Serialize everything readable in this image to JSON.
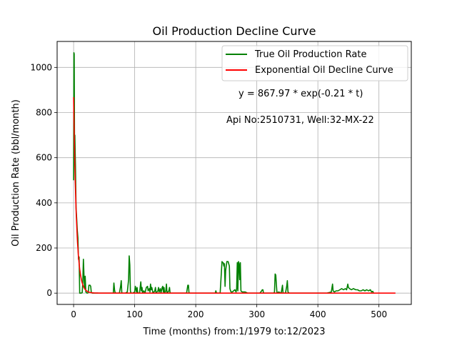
{
  "chart_data": {
    "type": "line",
    "title": "Oil Production Decline Curve",
    "xlabel": "Time (months) from:1/1979 to:12/2023",
    "ylabel": "Oil Production Rate (bbl/month)",
    "xlim": [
      -27,
      553
    ],
    "ylim": [
      -50,
      1115
    ],
    "xticks": [
      0,
      100,
      200,
      300,
      400,
      500
    ],
    "yticks": [
      0,
      200,
      400,
      600,
      800,
      1000
    ],
    "grid": true,
    "legend_position": "top-right",
    "annotations": [
      "y = 867.97 * exp(-0.21 * t)",
      "Api No:2510731, Well:32-MX-22"
    ],
    "series": [
      {
        "name": "True Oil Production Rate",
        "color": "#008000",
        "points": [
          [
            0,
            500
          ],
          [
            0.5,
            1065
          ],
          [
            1,
            1060
          ],
          [
            1.5,
            620
          ],
          [
            2,
            700
          ],
          [
            3,
            560
          ],
          [
            4,
            380
          ],
          [
            5,
            330
          ],
          [
            6,
            280
          ],
          [
            7,
            245
          ],
          [
            8,
            150
          ],
          [
            9,
            160
          ],
          [
            10,
            0
          ],
          [
            12,
            0
          ],
          [
            14,
            2
          ],
          [
            15,
            45
          ],
          [
            16,
            150
          ],
          [
            17,
            80
          ],
          [
            18,
            20
          ],
          [
            19,
            75
          ],
          [
            20,
            5
          ],
          [
            22,
            0
          ],
          [
            24,
            2
          ],
          [
            25,
            35
          ],
          [
            27,
            35
          ],
          [
            28,
            30
          ],
          [
            29,
            2
          ],
          [
            31,
            0
          ],
          [
            40,
            0
          ],
          [
            50,
            0
          ],
          [
            60,
            0
          ],
          [
            65,
            0
          ],
          [
            66,
            45
          ],
          [
            67,
            15
          ],
          [
            68,
            2
          ],
          [
            70,
            0
          ],
          [
            75,
            0
          ],
          [
            77,
            30
          ],
          [
            78,
            55
          ],
          [
            79,
            0
          ],
          [
            82,
            0
          ],
          [
            85,
            0
          ],
          [
            88,
            5
          ],
          [
            90,
            60
          ],
          [
            91,
            165
          ],
          [
            92,
            125
          ],
          [
            93,
            10
          ],
          [
            94,
            0
          ],
          [
            97,
            0
          ],
          [
            100,
            5
          ],
          [
            101,
            30
          ],
          [
            102,
            20
          ],
          [
            103,
            5
          ],
          [
            104,
            25
          ],
          [
            105,
            0
          ],
          [
            108,
            0
          ],
          [
            110,
            50
          ],
          [
            111,
            10
          ],
          [
            112,
            25
          ],
          [
            113,
            0
          ],
          [
            115,
            10
          ],
          [
            117,
            0
          ],
          [
            119,
            25
          ],
          [
            121,
            30
          ],
          [
            122,
            10
          ],
          [
            124,
            20
          ],
          [
            125,
            5
          ],
          [
            126,
            40
          ],
          [
            127,
            15
          ],
          [
            128,
            25
          ],
          [
            130,
            0
          ],
          [
            133,
            10
          ],
          [
            134,
            25
          ],
          [
            135,
            0
          ],
          [
            138,
            10
          ],
          [
            139,
            25
          ],
          [
            140,
            5
          ],
          [
            142,
            20
          ],
          [
            143,
            0
          ],
          [
            145,
            25
          ],
          [
            146,
            30
          ],
          [
            147,
            5
          ],
          [
            148,
            25
          ],
          [
            149,
            0
          ],
          [
            151,
            10
          ],
          [
            152,
            40
          ],
          [
            153,
            0
          ],
          [
            156,
            10
          ],
          [
            157,
            25
          ],
          [
            158,
            0
          ],
          [
            161,
            0
          ],
          [
            165,
            0
          ],
          [
            175,
            0
          ],
          [
            185,
            0
          ],
          [
            187,
            35
          ],
          [
            188,
            35
          ],
          [
            189,
            0
          ],
          [
            195,
            0
          ],
          [
            210,
            0
          ],
          [
            225,
            0
          ],
          [
            232,
            0
          ],
          [
            233,
            10
          ],
          [
            234,
            0
          ],
          [
            240,
            0
          ],
          [
            243,
            140
          ],
          [
            244,
            135
          ],
          [
            245,
            135
          ],
          [
            246,
            120
          ],
          [
            247,
            130
          ],
          [
            248,
            30
          ],
          [
            249,
            100
          ],
          [
            251,
            140
          ],
          [
            252,
            140
          ],
          [
            253,
            140
          ],
          [
            254,
            130
          ],
          [
            255,
            120
          ],
          [
            256,
            20
          ],
          [
            257,
            10
          ],
          [
            258,
            5
          ],
          [
            260,
            5
          ],
          [
            262,
            10
          ],
          [
            264,
            15
          ],
          [
            266,
            5
          ],
          [
            267,
            20
          ],
          [
            268,
            135
          ],
          [
            269,
            10
          ],
          [
            270,
            140
          ],
          [
            271,
            130
          ],
          [
            272,
            60
          ],
          [
            273,
            135
          ],
          [
            274,
            10
          ],
          [
            276,
            5
          ],
          [
            278,
            5
          ],
          [
            281,
            5
          ],
          [
            285,
            0
          ],
          [
            295,
            0
          ],
          [
            305,
            0
          ],
          [
            308,
            10
          ],
          [
            309,
            15
          ],
          [
            310,
            15
          ],
          [
            311,
            0
          ],
          [
            320,
            0
          ],
          [
            328,
            0
          ],
          [
            329,
            5
          ],
          [
            330,
            85
          ],
          [
            331,
            80
          ],
          [
            332,
            40
          ],
          [
            333,
            0
          ],
          [
            336,
            5
          ],
          [
            340,
            0
          ],
          [
            342,
            35
          ],
          [
            343,
            0
          ],
          [
            347,
            0
          ],
          [
            349,
            30
          ],
          [
            350,
            55
          ],
          [
            351,
            5
          ],
          [
            353,
            0
          ],
          [
            365,
            0
          ],
          [
            380,
            0
          ],
          [
            400,
            0
          ],
          [
            415,
            0
          ],
          [
            422,
            5
          ],
          [
            424,
            40
          ],
          [
            425,
            10
          ],
          [
            427,
            5
          ],
          [
            430,
            10
          ],
          [
            433,
            10
          ],
          [
            436,
            15
          ],
          [
            439,
            20
          ],
          [
            442,
            15
          ],
          [
            445,
            20
          ],
          [
            447,
            15
          ],
          [
            449,
            40
          ],
          [
            450,
            25
          ],
          [
            452,
            20
          ],
          [
            455,
            15
          ],
          [
            458,
            20
          ],
          [
            462,
            15
          ],
          [
            465,
            15
          ],
          [
            468,
            10
          ],
          [
            471,
            10
          ],
          [
            474,
            15
          ],
          [
            477,
            10
          ],
          [
            480,
            15
          ],
          [
            483,
            10
          ],
          [
            486,
            15
          ],
          [
            488,
            5
          ],
          [
            490,
            8
          ],
          [
            491,
            0
          ]
        ]
      },
      {
        "name": "Exponential Oil Decline Curve",
        "color": "#ff0000",
        "equation": {
          "a": 867.97,
          "b": 0.21
        },
        "x_range": [
          0,
          527
        ]
      }
    ]
  }
}
